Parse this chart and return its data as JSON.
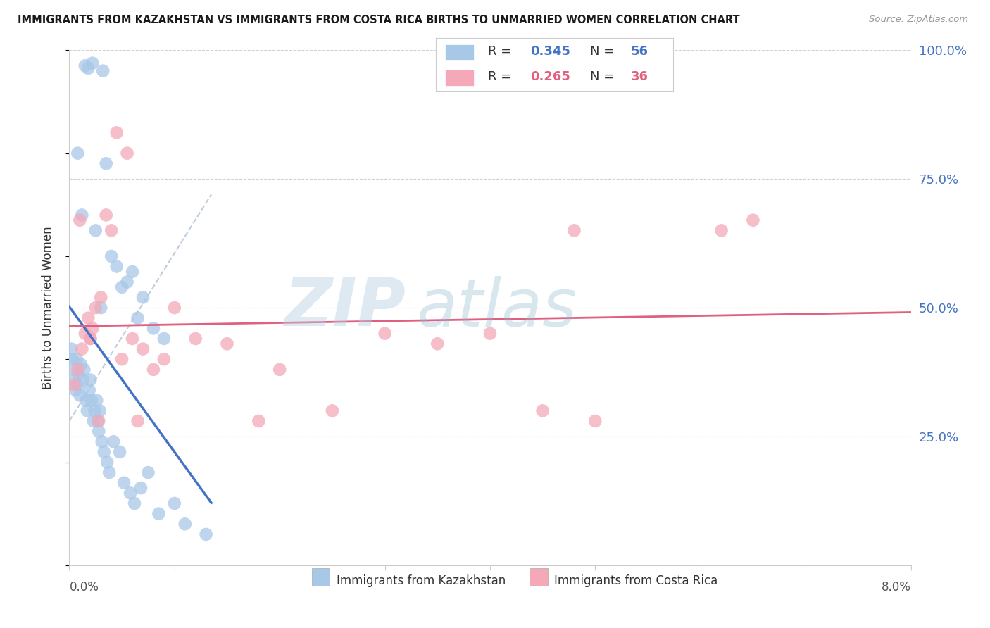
{
  "title": "IMMIGRANTS FROM KAZAKHSTAN VS IMMIGRANTS FROM COSTA RICA BIRTHS TO UNMARRIED WOMEN CORRELATION CHART",
  "source": "Source: ZipAtlas.com",
  "xmin": 0.0,
  "xmax": 8.0,
  "ymin": 0.0,
  "ymax": 100.0,
  "legend_kaz_R": "0.345",
  "legend_kaz_N": "56",
  "legend_cr_R": "0.265",
  "legend_cr_N": "36",
  "label_kaz": "Immigrants from Kazakhstan",
  "label_cr": "Immigrants from Costa Rica",
  "ylabel": "Births to Unmarried Women",
  "watermark_zip": "ZIP",
  "watermark_atlas": "atlas",
  "color_kaz": "#a8c8e8",
  "color_cr": "#f4a8b8",
  "color_kaz_line": "#4472c4",
  "color_cr_line": "#e06080",
  "color_diag": "#b8c8d8",
  "grid_color": "#d0d0d0",
  "ytick_color": "#4472c4",
  "kaz_x": [
    0.15,
    0.18,
    0.22,
    0.32,
    0.08,
    0.35,
    0.12,
    0.25,
    0.4,
    0.55,
    0.6,
    0.7,
    0.45,
    0.3,
    0.5,
    0.65,
    0.8,
    0.9,
    0.02,
    0.03,
    0.04,
    0.05,
    0.06,
    0.07,
    0.08,
    0.09,
    0.1,
    0.11,
    0.13,
    0.14,
    0.16,
    0.17,
    0.19,
    0.2,
    0.21,
    0.23,
    0.24,
    0.26,
    0.27,
    0.28,
    0.29,
    0.31,
    0.33,
    0.36,
    0.38,
    0.42,
    0.48,
    0.52,
    0.58,
    0.62,
    0.68,
    0.75,
    0.85,
    1.0,
    1.1,
    1.3
  ],
  "kaz_y": [
    97.0,
    96.5,
    97.5,
    96.0,
    80.0,
    78.0,
    68.0,
    65.0,
    60.0,
    55.0,
    57.0,
    52.0,
    58.0,
    50.0,
    54.0,
    48.0,
    46.0,
    44.0,
    42.0,
    40.0,
    36.0,
    38.0,
    34.0,
    40.0,
    35.0,
    37.0,
    33.0,
    39.0,
    36.0,
    38.0,
    32.0,
    30.0,
    34.0,
    36.0,
    32.0,
    28.0,
    30.0,
    32.0,
    28.0,
    26.0,
    30.0,
    24.0,
    22.0,
    20.0,
    18.0,
    24.0,
    22.0,
    16.0,
    14.0,
    12.0,
    15.0,
    18.0,
    10.0,
    12.0,
    8.0,
    6.0
  ],
  "cr_x": [
    0.45,
    0.55,
    0.1,
    0.05,
    0.08,
    0.15,
    0.2,
    0.25,
    0.3,
    0.12,
    0.18,
    0.22,
    0.35,
    0.4,
    0.6,
    0.7,
    0.8,
    1.0,
    1.2,
    1.5,
    1.8,
    2.0,
    2.5,
    3.0,
    3.5,
    4.0,
    4.5,
    4.8,
    5.0,
    6.2,
    6.5,
    0.2,
    0.28,
    0.5,
    0.65,
    0.9
  ],
  "cr_y": [
    84.0,
    80.0,
    67.0,
    35.0,
    38.0,
    45.0,
    44.0,
    50.0,
    52.0,
    42.0,
    48.0,
    46.0,
    68.0,
    65.0,
    44.0,
    42.0,
    38.0,
    50.0,
    44.0,
    43.0,
    28.0,
    38.0,
    30.0,
    45.0,
    43.0,
    45.0,
    30.0,
    65.0,
    28.0,
    65.0,
    67.0,
    44.0,
    28.0,
    40.0,
    28.0,
    40.0
  ]
}
